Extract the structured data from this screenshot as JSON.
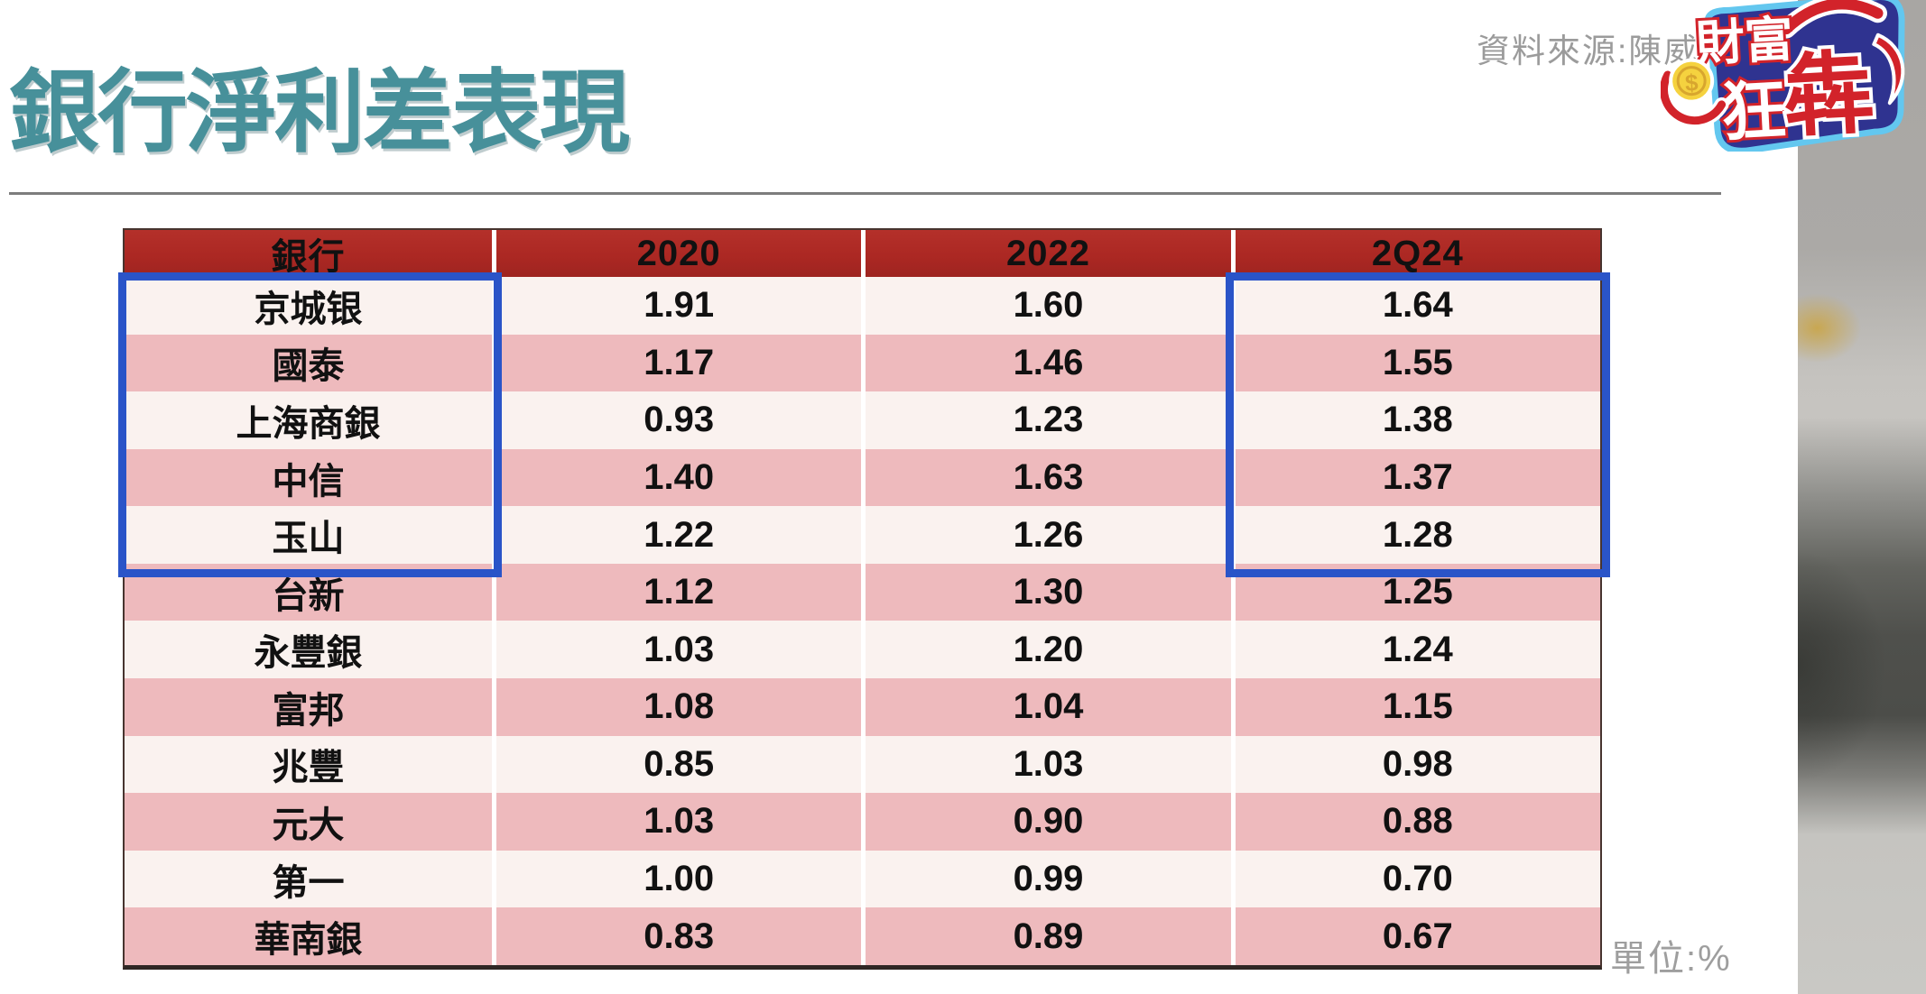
{
  "title": "銀行淨利差表現",
  "source_note": "資料來源:陳威",
  "unit_note": "單位:%",
  "logo": {
    "name": "財富狂犇",
    "text_top": "財富",
    "text_mid": "狂",
    "text_big": "犇",
    "coin_symbol": "$"
  },
  "colors": {
    "title_teal": "#47909A",
    "header_red": "#AC2823",
    "row_pink": "#EEBABD",
    "row_cream": "#FAF2EF",
    "highlight_blue": "#2A54C8",
    "note_gray": "#9B9B9B",
    "logo_navy": "#2F3390",
    "logo_sky_outline": "#63C7EF",
    "logo_red": "#D2232A",
    "coin_yellow": "#F5D23F"
  },
  "chart_data": {
    "type": "table",
    "title": "銀行淨利差表現",
    "unit": "%",
    "columns": [
      "銀行",
      "2020",
      "2022",
      "2Q24"
    ],
    "rows": [
      {
        "bank": "京城银",
        "values": [
          "1.91",
          "1.60",
          "1.64"
        ]
      },
      {
        "bank": "國泰",
        "values": [
          "1.17",
          "1.46",
          "1.55"
        ]
      },
      {
        "bank": "上海商銀",
        "values": [
          "0.93",
          "1.23",
          "1.38"
        ]
      },
      {
        "bank": "中信",
        "values": [
          "1.40",
          "1.63",
          "1.37"
        ]
      },
      {
        "bank": "玉山",
        "values": [
          "1.22",
          "1.26",
          "1.28"
        ]
      },
      {
        "bank": "台新",
        "values": [
          "1.12",
          "1.30",
          "1.25"
        ]
      },
      {
        "bank": "永豐銀",
        "values": [
          "1.03",
          "1.20",
          "1.24"
        ]
      },
      {
        "bank": "富邦",
        "values": [
          "1.08",
          "1.04",
          "1.15"
        ]
      },
      {
        "bank": "兆豐",
        "values": [
          "0.85",
          "1.03",
          "0.98"
        ]
      },
      {
        "bank": "元大",
        "values": [
          "1.03",
          "0.90",
          "0.88"
        ]
      },
      {
        "bank": "第一",
        "values": [
          "1.00",
          "0.99",
          "0.70"
        ]
      },
      {
        "bank": "華南銀",
        "values": [
          "0.83",
          "0.89",
          "0.67"
        ]
      }
    ],
    "layout": {
      "row_striping": [
        "cream",
        "pink"
      ],
      "header_style": "dark-red with white bold text",
      "highlight_boxes": [
        {
          "covers": "bank column rows 1-5 (京城银 to 玉山)",
          "color": "#2A54C8"
        },
        {
          "covers": "2Q24 column rows 1-5",
          "color": "#2A54C8"
        }
      ]
    }
  }
}
